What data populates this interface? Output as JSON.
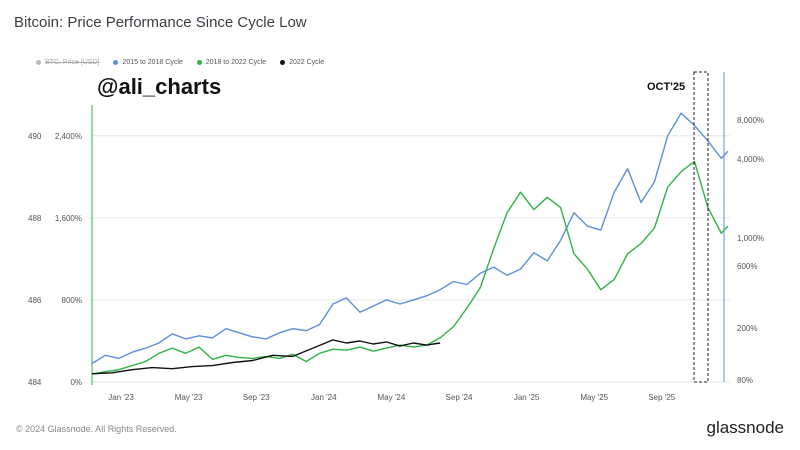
{
  "title": "Bitcoin: Price Performance Since Cycle Low",
  "watermark_handle": "@ali_charts",
  "annotation": "OCT'25",
  "footer": "© 2024 Glassnode. All Rights Reserved.",
  "brand": "glassnode",
  "chart_data": {
    "type": "line",
    "title": "Bitcoin: Price Performance Since Cycle Low",
    "legend_position": "top-left",
    "legend": [
      {
        "label": "BTC: Price [USD]",
        "color": "#bbbbbb",
        "disabled": true
      },
      {
        "label": "2015 to 2018 Cycle",
        "color": "#5b8fdc"
      },
      {
        "label": "2018 to 2022 Cycle",
        "color": "#2fb344"
      },
      {
        "label": "2022 Cycle",
        "color": "#111111"
      }
    ],
    "x_ticks": [
      "Jan '23",
      "May '23",
      "Sep '23",
      "Jan '24",
      "May '24",
      "Sep '24",
      "Jan '25",
      "May '25",
      "Sep '25"
    ],
    "y_left_ticks": [
      "0%",
      "800%",
      "1,600%",
      "2,400%"
    ],
    "y_left_range": [
      0,
      2700
    ],
    "y_left_outer_ticks": [
      "484",
      "486",
      "488",
      "490"
    ],
    "y_right_ticks": [
      "80%",
      "200%",
      "600%",
      "1,000%",
      "4,000%",
      "8,000%"
    ],
    "grid": true,
    "series": [
      {
        "name": "2015 to 2018 Cycle",
        "color": "#5b8fdc",
        "points": [
          [
            0,
            180
          ],
          [
            4,
            260
          ],
          [
            8,
            230
          ],
          [
            12,
            290
          ],
          [
            16,
            330
          ],
          [
            20,
            380
          ],
          [
            24,
            470
          ],
          [
            28,
            420
          ],
          [
            32,
            450
          ],
          [
            36,
            430
          ],
          [
            40,
            520
          ],
          [
            44,
            480
          ],
          [
            48,
            440
          ],
          [
            52,
            420
          ],
          [
            56,
            480
          ],
          [
            60,
            520
          ],
          [
            64,
            500
          ],
          [
            68,
            560
          ],
          [
            72,
            760
          ],
          [
            76,
            820
          ],
          [
            80,
            680
          ],
          [
            84,
            740
          ],
          [
            88,
            800
          ],
          [
            92,
            760
          ],
          [
            96,
            800
          ],
          [
            100,
            840
          ],
          [
            104,
            900
          ],
          [
            108,
            980
          ],
          [
            112,
            950
          ],
          [
            116,
            1060
          ],
          [
            120,
            1120
          ],
          [
            124,
            1040
          ],
          [
            128,
            1100
          ],
          [
            132,
            1260
          ],
          [
            136,
            1180
          ],
          [
            140,
            1380
          ],
          [
            144,
            1650
          ],
          [
            148,
            1520
          ],
          [
            152,
            1480
          ],
          [
            156,
            1850
          ],
          [
            160,
            2080
          ],
          [
            164,
            1750
          ],
          [
            168,
            1950
          ],
          [
            172,
            2400
          ],
          [
            176,
            2620
          ],
          [
            180,
            2500
          ],
          [
            184,
            2350
          ],
          [
            188,
            2180
          ],
          [
            190,
            2250
          ]
        ]
      },
      {
        "name": "2018 to 2022 Cycle",
        "color": "#2fb344",
        "points": [
          [
            0,
            80
          ],
          [
            4,
            100
          ],
          [
            8,
            120
          ],
          [
            12,
            160
          ],
          [
            16,
            200
          ],
          [
            20,
            280
          ],
          [
            24,
            330
          ],
          [
            28,
            280
          ],
          [
            32,
            340
          ],
          [
            36,
            220
          ],
          [
            40,
            260
          ],
          [
            44,
            240
          ],
          [
            48,
            230
          ],
          [
            52,
            250
          ],
          [
            56,
            230
          ],
          [
            60,
            270
          ],
          [
            64,
            200
          ],
          [
            68,
            280
          ],
          [
            72,
            320
          ],
          [
            76,
            310
          ],
          [
            80,
            340
          ],
          [
            84,
            300
          ],
          [
            88,
            330
          ],
          [
            92,
            360
          ],
          [
            96,
            340
          ],
          [
            100,
            360
          ],
          [
            104,
            430
          ],
          [
            108,
            540
          ],
          [
            112,
            720
          ],
          [
            116,
            920
          ],
          [
            120,
            1300
          ],
          [
            124,
            1650
          ],
          [
            128,
            1850
          ],
          [
            132,
            1680
          ],
          [
            136,
            1800
          ],
          [
            140,
            1700
          ],
          [
            144,
            1250
          ],
          [
            148,
            1100
          ],
          [
            152,
            900
          ],
          [
            156,
            1000
          ],
          [
            160,
            1250
          ],
          [
            164,
            1350
          ],
          [
            168,
            1500
          ],
          [
            172,
            1900
          ],
          [
            176,
            2050
          ],
          [
            180,
            2150
          ],
          [
            184,
            1700
          ],
          [
            188,
            1450
          ],
          [
            190,
            1520
          ]
        ]
      },
      {
        "name": "2022 Cycle",
        "color": "#111111",
        "points": [
          [
            0,
            80
          ],
          [
            6,
            90
          ],
          [
            12,
            120
          ],
          [
            18,
            140
          ],
          [
            24,
            130
          ],
          [
            30,
            150
          ],
          [
            36,
            160
          ],
          [
            42,
            190
          ],
          [
            48,
            210
          ],
          [
            54,
            260
          ],
          [
            60,
            250
          ],
          [
            66,
            330
          ],
          [
            72,
            410
          ],
          [
            76,
            380
          ],
          [
            80,
            400
          ],
          [
            84,
            370
          ],
          [
            88,
            390
          ],
          [
            92,
            350
          ],
          [
            96,
            380
          ],
          [
            100,
            360
          ],
          [
            104,
            380
          ]
        ]
      }
    ]
  }
}
